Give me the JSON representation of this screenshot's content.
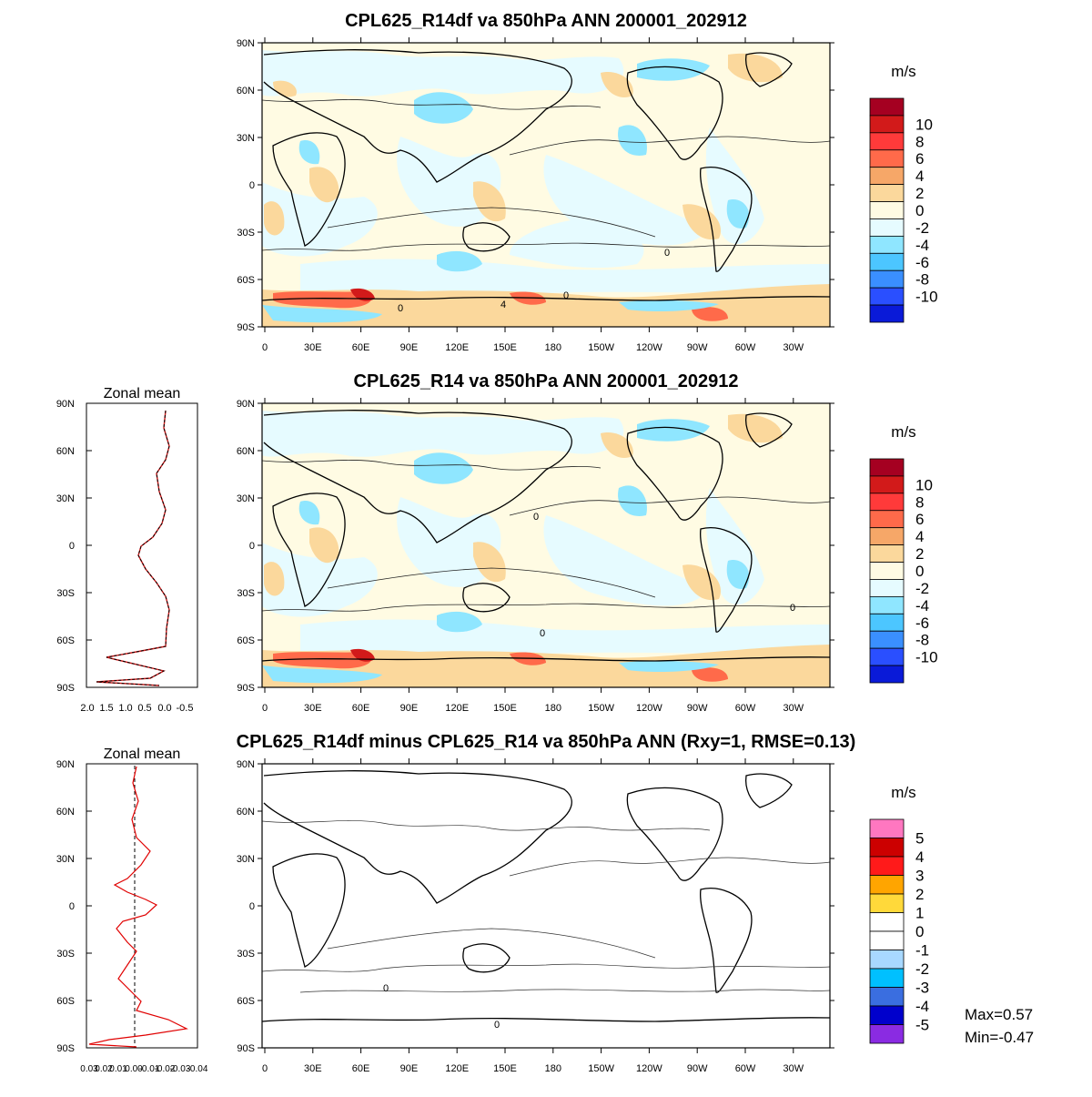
{
  "panels": [
    {
      "title": "CPL625_R14df va 850hPa ANN 200001_202912",
      "units": "m/s",
      "colorbar": {
        "labels": [
          "10",
          "8",
          "6",
          "4",
          "2",
          "0",
          "-2",
          "-4",
          "-6",
          "-8",
          "-10"
        ],
        "colors": [
          "#a50021",
          "#d21a1a",
          "#ff3a3a",
          "#ff6a4a",
          "#f6a768",
          "#fbd89c",
          "#fffbe3",
          "#e6fbff",
          "#8fe6ff",
          "#4cc6ff",
          "#3a8fff",
          "#2a4fff",
          "#0a1ad8"
        ]
      }
    },
    {
      "title": "CPL625_R14 va 850hPa ANN 200001_202912",
      "units": "m/s",
      "colorbar": {
        "labels": [
          "10",
          "8",
          "6",
          "4",
          "2",
          "0",
          "-2",
          "-4",
          "-6",
          "-8",
          "-10"
        ],
        "colors": [
          "#a50021",
          "#d21a1a",
          "#ff3a3a",
          "#ff6a4a",
          "#f6a768",
          "#fbd89c",
          "#fffbe3",
          "#e6fbff",
          "#8fe6ff",
          "#4cc6ff",
          "#3a8fff",
          "#2a4fff",
          "#0a1ad8"
        ]
      },
      "zonal_title": "Zonal mean",
      "zonal_xticks": [
        "2.0",
        "1.5",
        "1.0",
        "0.5",
        "0.0",
        "-0.5"
      ]
    },
    {
      "title": "CPL625_R14df minus CPL625_R14 va 850hPa ANN (Rxy=1, RMSE=0.13)",
      "units": "m/s",
      "colorbar": {
        "labels": [
          "5",
          "4",
          "3",
          "2",
          "1",
          "0",
          "-1",
          "-2",
          "-3",
          "-4",
          "-5"
        ],
        "colors": [
          "#ff77c0",
          "#cc0000",
          "#ff1a1a",
          "#ffa500",
          "#ffd93a",
          "#ffffff",
          "#ffffff",
          "#a8d8ff",
          "#00c0ff",
          "#3a6ee0",
          "#0000cc",
          "#8a2be2"
        ]
      },
      "zonal_title": "Zonal mean",
      "zonal_xticks": [
        "0.03",
        "0.02",
        "0.01",
        "0.00",
        "-0.01",
        "-0.02",
        "-0.03",
        "-0.04"
      ],
      "stats": {
        "max": "Max=0.57",
        "min": "Min=-0.47"
      }
    }
  ],
  "lat_ticks": [
    "90N",
    "60N",
    "30N",
    "0",
    "30S",
    "60S",
    "90S"
  ],
  "lon_ticks": [
    "0",
    "30E",
    "60E",
    "90E",
    "120E",
    "150E",
    "180",
    "150W",
    "120W",
    "90W",
    "60W",
    "30W"
  ],
  "contour_labels": [
    "0",
    "0",
    "4",
    "0",
    "0"
  ]
}
